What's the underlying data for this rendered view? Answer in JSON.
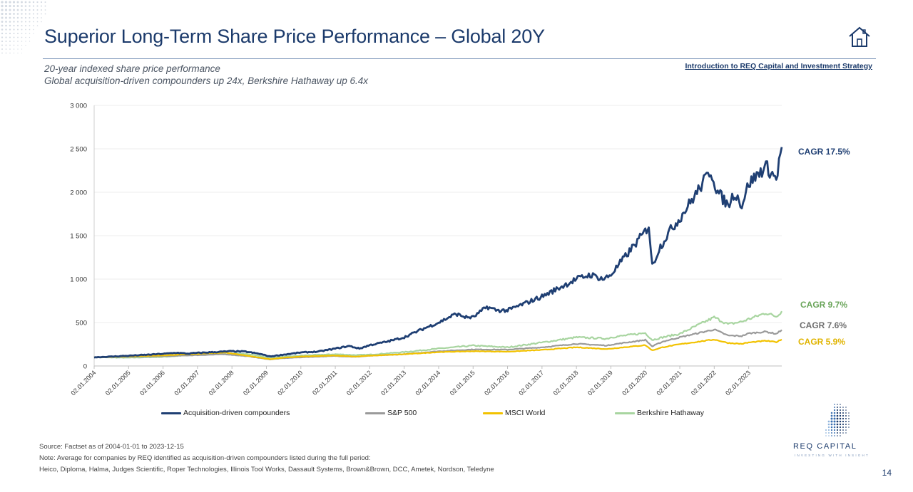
{
  "header": {
    "title": "Superior Long-Term Share Price Performance – Global 20Y",
    "subtitle_line1": "20-year indexed share price performance",
    "subtitle_line2": "Global acquisition-driven compounders up 24x, Berkshire Hathaway up 6.4x",
    "intro_link": "Introduction to REQ Capital and Investment Strategy",
    "home_icon": "home-icon"
  },
  "chart_data": {
    "type": "line",
    "title": "",
    "xlabel": "",
    "ylabel": "",
    "ylim": [
      0,
      3000
    ],
    "yticks": [
      "0",
      "500",
      "1 000",
      "1 500",
      "2 000",
      "2 500",
      "3 000"
    ],
    "ytick_values": [
      0,
      500,
      1000,
      1500,
      2000,
      2500,
      3000
    ],
    "xticks": [
      "02.01.2004",
      "02.01.2005",
      "02.01.2006",
      "02.01.2007",
      "02.01.2008",
      "02.01.2009",
      "02.01.2010",
      "02.01.2011",
      "02.01.2012",
      "02.01.2013",
      "02.01.2014",
      "02.01.2015",
      "02.01.2016",
      "02.01.2017",
      "02.01.2018",
      "02.01.2019",
      "02.01.2020",
      "02.01.2021",
      "02.01.2022",
      "02.01.2023"
    ],
    "grid": true,
    "legend_position": "bottom",
    "series": [
      {
        "name": "Acquisition-driven compounders",
        "color": "#1f3f73",
        "cagr_label": "CAGR 17.5%",
        "points": [
          [
            2004.0,
            100
          ],
          [
            2004.5,
            108
          ],
          [
            2005.0,
            118
          ],
          [
            2005.5,
            128
          ],
          [
            2006.0,
            140
          ],
          [
            2006.4,
            152
          ],
          [
            2006.7,
            142
          ],
          [
            2007.0,
            150
          ],
          [
            2007.5,
            160
          ],
          [
            2008.0,
            170
          ],
          [
            2008.4,
            165
          ],
          [
            2008.8,
            140
          ],
          [
            2009.1,
            110
          ],
          [
            2009.5,
            130
          ],
          [
            2010.0,
            155
          ],
          [
            2010.5,
            165
          ],
          [
            2011.0,
            200
          ],
          [
            2011.4,
            230
          ],
          [
            2011.7,
            200
          ],
          [
            2012.0,
            240
          ],
          [
            2012.5,
            280
          ],
          [
            2013.0,
            330
          ],
          [
            2013.5,
            420
          ],
          [
            2014.0,
            500
          ],
          [
            2014.5,
            600
          ],
          [
            2014.8,
            560
          ],
          [
            2015.0,
            560
          ],
          [
            2015.4,
            680
          ],
          [
            2015.7,
            640
          ],
          [
            2016.0,
            640
          ],
          [
            2016.5,
            720
          ],
          [
            2017.0,
            800
          ],
          [
            2017.5,
            900
          ],
          [
            2018.0,
            1000
          ],
          [
            2018.4,
            1050
          ],
          [
            2018.8,
            1000
          ],
          [
            2019.0,
            1050
          ],
          [
            2019.5,
            1300
          ],
          [
            2020.0,
            1550
          ],
          [
            2020.1,
            1620
          ],
          [
            2020.2,
            1150
          ],
          [
            2020.4,
            1350
          ],
          [
            2020.7,
            1550
          ],
          [
            2021.0,
            1700
          ],
          [
            2021.5,
            2000
          ],
          [
            2021.9,
            2250
          ],
          [
            2022.1,
            2000
          ],
          [
            2022.4,
            1850
          ],
          [
            2022.6,
            2000
          ],
          [
            2022.8,
            1850
          ],
          [
            2023.0,
            2100
          ],
          [
            2023.5,
            2300
          ],
          [
            2023.8,
            2150
          ],
          [
            2023.96,
            2520
          ]
        ]
      },
      {
        "name": "S&P 500",
        "color": "#9a9a9a",
        "cagr_label": "CAGR 7.6%",
        "points": [
          [
            2004.0,
            100
          ],
          [
            2005.0,
            105
          ],
          [
            2006.0,
            112
          ],
          [
            2007.0,
            125
          ],
          [
            2007.8,
            135
          ],
          [
            2008.5,
            110
          ],
          [
            2009.1,
            75
          ],
          [
            2009.5,
            90
          ],
          [
            2010.0,
            100
          ],
          [
            2011.0,
            115
          ],
          [
            2011.6,
            105
          ],
          [
            2012.0,
            118
          ],
          [
            2013.0,
            135
          ],
          [
            2014.0,
            170
          ],
          [
            2015.0,
            190
          ],
          [
            2016.0,
            188
          ],
          [
            2017.0,
            215
          ],
          [
            2018.0,
            255
          ],
          [
            2018.9,
            235
          ],
          [
            2019.0,
            245
          ],
          [
            2020.0,
            300
          ],
          [
            2020.2,
            225
          ],
          [
            2020.5,
            280
          ],
          [
            2021.0,
            330
          ],
          [
            2022.0,
            420
          ],
          [
            2022.4,
            350
          ],
          [
            2022.8,
            345
          ],
          [
            2023.0,
            375
          ],
          [
            2023.5,
            395
          ],
          [
            2023.8,
            370
          ],
          [
            2023.96,
            415
          ]
        ]
      },
      {
        "name": "MSCI World",
        "color": "#f2c200",
        "cagr_label": "CAGR 5.9%",
        "points": [
          [
            2004.0,
            100
          ],
          [
            2005.0,
            110
          ],
          [
            2006.0,
            122
          ],
          [
            2007.0,
            140
          ],
          [
            2007.8,
            155
          ],
          [
            2008.5,
            115
          ],
          [
            2009.1,
            78
          ],
          [
            2009.5,
            95
          ],
          [
            2010.0,
            108
          ],
          [
            2011.0,
            120
          ],
          [
            2011.6,
            108
          ],
          [
            2012.0,
            118
          ],
          [
            2013.0,
            135
          ],
          [
            2014.0,
            160
          ],
          [
            2015.0,
            170
          ],
          [
            2016.0,
            165
          ],
          [
            2017.0,
            185
          ],
          [
            2018.0,
            215
          ],
          [
            2018.9,
            195
          ],
          [
            2019.0,
            200
          ],
          [
            2020.0,
            240
          ],
          [
            2020.2,
            180
          ],
          [
            2020.5,
            215
          ],
          [
            2021.0,
            250
          ],
          [
            2022.0,
            305
          ],
          [
            2022.4,
            265
          ],
          [
            2022.8,
            255
          ],
          [
            2023.0,
            270
          ],
          [
            2023.5,
            290
          ],
          [
            2023.8,
            275
          ],
          [
            2023.96,
            305
          ]
        ]
      },
      {
        "name": "Berkshire Hathaway",
        "color": "#a8d5a0",
        "cagr_label": "CAGR 9.7%",
        "points": [
          [
            2004.0,
            100
          ],
          [
            2005.0,
            95
          ],
          [
            2006.0,
            105
          ],
          [
            2007.0,
            130
          ],
          [
            2007.9,
            150
          ],
          [
            2008.5,
            135
          ],
          [
            2009.1,
            95
          ],
          [
            2009.5,
            105
          ],
          [
            2010.0,
            120
          ],
          [
            2011.0,
            135
          ],
          [
            2011.6,
            125
          ],
          [
            2012.0,
            130
          ],
          [
            2013.0,
            160
          ],
          [
            2014.0,
            200
          ],
          [
            2015.0,
            235
          ],
          [
            2016.0,
            215
          ],
          [
            2017.0,
            270
          ],
          [
            2018.0,
            330
          ],
          [
            2018.9,
            315
          ],
          [
            2019.0,
            330
          ],
          [
            2020.0,
            380
          ],
          [
            2020.2,
            300
          ],
          [
            2020.5,
            330
          ],
          [
            2021.0,
            370
          ],
          [
            2022.0,
            560
          ],
          [
            2022.4,
            480
          ],
          [
            2022.8,
            510
          ],
          [
            2023.0,
            540
          ],
          [
            2023.5,
            610
          ],
          [
            2023.8,
            570
          ],
          [
            2023.96,
            630
          ]
        ]
      }
    ]
  },
  "footer": {
    "source": "Source: Factset as of 2004-01-01 to 2023-12-15",
    "note1": "Note: Average for companies by REQ identified as acquisition-driven compounders listed during the full period:",
    "note2": "Heico, Diploma, Halma, Judges Scientific, Roper Technologies, Illinois Tool Works, Dassault Systems, Brown&Brown, DCC, Ametek, Nordson, Teledyne"
  },
  "brand": {
    "logo_text": "REQ CAPITAL",
    "tagline": "INVESTING WITH INSIGHT",
    "accent": "#1b3a6b"
  },
  "page_number": "14"
}
